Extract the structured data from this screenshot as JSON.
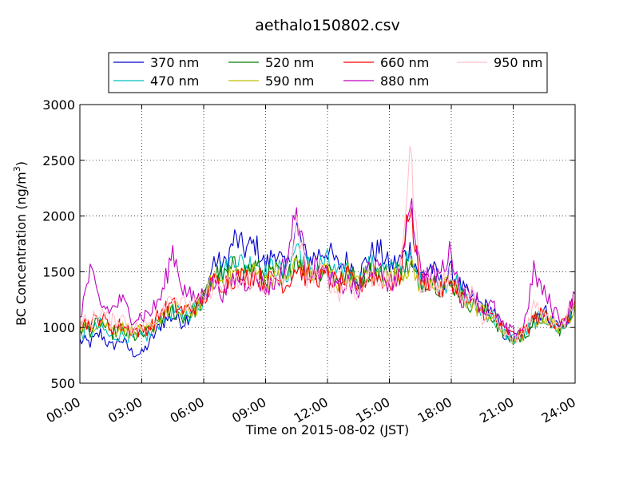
{
  "chart_data": {
    "type": "line",
    "title": "aethalo150802.csv",
    "xlabel": "Time on 2015-08-02 (JST)",
    "ylabel": "BC Concentration (ng/m",
    "ylabel_sup": "3",
    "ylabel_close": ")",
    "xlim": [
      0,
      24
    ],
    "ylim": [
      500,
      3000
    ],
    "x_unit": "hours",
    "grid": true,
    "grid_style": "dotted",
    "legend_position": "top",
    "x_ticks": [
      0,
      3,
      6,
      9,
      12,
      15,
      18,
      21,
      24
    ],
    "x_tick_labels": [
      "00:00",
      "03:00",
      "06:00",
      "09:00",
      "12:00",
      "15:00",
      "18:00",
      "21:00",
      "24:00"
    ],
    "y_ticks": [
      500,
      1000,
      1500,
      2000,
      2500,
      3000
    ],
    "y_tick_labels": [
      "500",
      "1000",
      "1500",
      "2000",
      "2500",
      "3000"
    ],
    "key_x": [
      0,
      0.5,
      1,
      1.5,
      2,
      2.5,
      3,
      3.5,
      4,
      4.5,
      5,
      5.5,
      6,
      6.5,
      7,
      7.5,
      8,
      8.5,
      9,
      9.5,
      10,
      10.5,
      11,
      11.5,
      12,
      12.5,
      13,
      13.5,
      14,
      14.5,
      15,
      15.5,
      16,
      16.5,
      17,
      17.5,
      18,
      18.5,
      19,
      19.5,
      20,
      20.5,
      21,
      21.5,
      22,
      22.5,
      23,
      23.5,
      24
    ],
    "series": [
      {
        "name": "370 nm",
        "color": "#0000cc",
        "values": [
          880,
          860,
          950,
          820,
          900,
          780,
          760,
          900,
          1050,
          1100,
          1050,
          1150,
          1250,
          1600,
          1550,
          1800,
          1700,
          1750,
          1550,
          1700,
          1500,
          1900,
          1600,
          1650,
          1700,
          1550,
          1600,
          1450,
          1650,
          1700,
          1550,
          1600,
          1700,
          1450,
          1550,
          1400,
          1500,
          1350,
          1250,
          1200,
          1150,
          950,
          900,
          920,
          1100,
          1150,
          1050,
          1000,
          1200
        ]
      },
      {
        "name": "470 nm",
        "color": "#00bfbf",
        "values": [
          950,
          950,
          1020,
          900,
          950,
          900,
          900,
          950,
          1100,
          1150,
          1100,
          1150,
          1250,
          1550,
          1500,
          1650,
          1550,
          1600,
          1500,
          1550,
          1450,
          1750,
          1550,
          1550,
          1600,
          1450,
          1550,
          1400,
          1550,
          1550,
          1500,
          1550,
          1600,
          1400,
          1450,
          1350,
          1450,
          1300,
          1200,
          1150,
          1100,
          950,
          900,
          920,
          1050,
          1100,
          1000,
          1000,
          1200
        ]
      },
      {
        "name": "520 nm",
        "color": "#007f00",
        "values": [
          1000,
          980,
          1050,
          950,
          980,
          920,
          920,
          980,
          1100,
          1150,
          1100,
          1150,
          1250,
          1500,
          1450,
          1550,
          1500,
          1550,
          1450,
          1500,
          1400,
          1650,
          1500,
          1500,
          1550,
          1400,
          1500,
          1400,
          1500,
          1500,
          1450,
          1500,
          1550,
          1400,
          1450,
          1350,
          1400,
          1300,
          1200,
          1150,
          1100,
          950,
          880,
          920,
          1050,
          1100,
          1000,
          980,
          1200
        ]
      },
      {
        "name": "590 nm",
        "color": "#bfbf00",
        "values": [
          1020,
          1000,
          1080,
          980,
          1000,
          960,
          950,
          1000,
          1120,
          1180,
          1120,
          1150,
          1250,
          1450,
          1420,
          1500,
          1480,
          1500,
          1420,
          1480,
          1400,
          1600,
          1480,
          1480,
          1520,
          1400,
          1480,
          1380,
          1480,
          1480,
          1430,
          1480,
          1550,
          1380,
          1430,
          1330,
          1400,
          1280,
          1200,
          1150,
          1100,
          960,
          900,
          930,
          1050,
          1100,
          1020,
          1000,
          1220
        ]
      },
      {
        "name": "660 nm",
        "color": "#ff0000",
        "values": [
          1050,
          1030,
          1100,
          1000,
          1020,
          980,
          970,
          1020,
          1150,
          1200,
          1150,
          1180,
          1250,
          1420,
          1400,
          1450,
          1450,
          1480,
          1400,
          1450,
          1380,
          1550,
          1450,
          1450,
          1480,
          1380,
          1450,
          1360,
          1460,
          1450,
          1400,
          1450,
          2100,
          1400,
          1420,
          1320,
          1420,
          1280,
          1200,
          1150,
          1100,
          980,
          920,
          950,
          1080,
          1120,
          1050,
          1030,
          1250
        ]
      },
      {
        "name": "880 nm",
        "color": "#bf00bf",
        "values": [
          1100,
          1500,
          1200,
          1150,
          1250,
          1100,
          1100,
          1150,
          1300,
          1700,
          1350,
          1250,
          1300,
          1400,
          1300,
          1450,
          1400,
          1450,
          1350,
          1400,
          1600,
          2050,
          1500,
          1550,
          1450,
          1350,
          1400,
          1300,
          1550,
          1500,
          1400,
          1450,
          2200,
          1500,
          1450,
          1500,
          1700,
          1250,
          1350,
          1150,
          1200,
          1000,
          950,
          1000,
          1500,
          1300,
          1150,
          1050,
          1300
        ]
      },
      {
        "name": "950 nm",
        "color": "#ffc0cb",
        "values": [
          1050,
          1050,
          1150,
          1050,
          1100,
          1000,
          1000,
          1050,
          1200,
          1300,
          1200,
          1200,
          1250,
          1400,
          1350,
          1400,
          1400,
          1450,
          1350,
          1400,
          1450,
          1900,
          1450,
          1500,
          1450,
          1300,
          1400,
          1300,
          1450,
          1450,
          1400,
          1450,
          2600,
          1400,
          1400,
          1350,
          1500,
          1250,
          1300,
          1100,
          1100,
          950,
          880,
          950,
          1200,
          1150,
          1050,
          1050,
          1300
        ]
      }
    ]
  }
}
